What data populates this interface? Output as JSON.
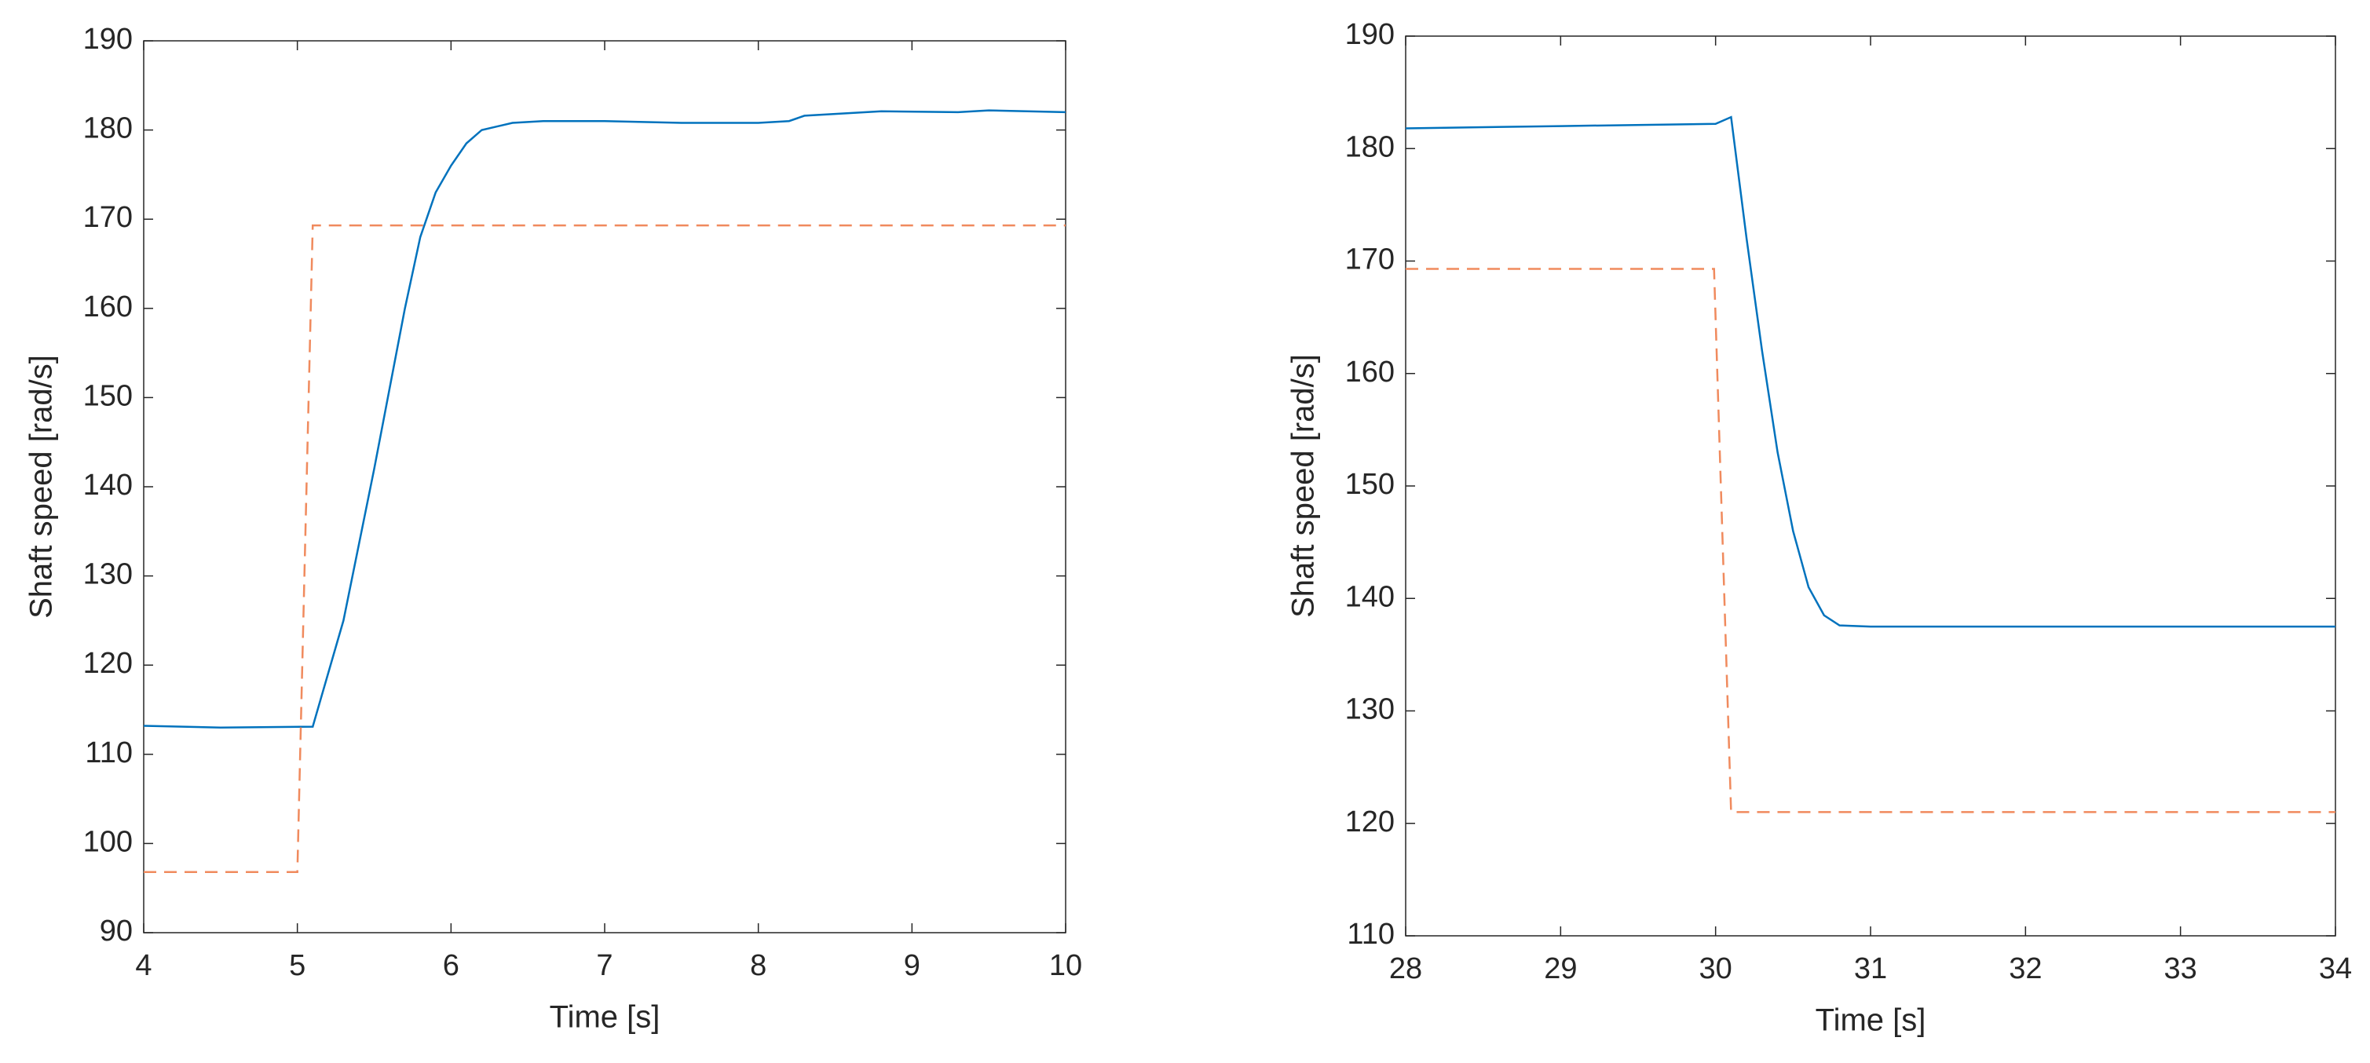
{
  "chart_data": [
    {
      "type": "line",
      "xlabel": "Time [s]",
      "ylabel": "Shaft speed [rad/s]",
      "xlim": [
        4,
        10
      ],
      "ylim": [
        90,
        190
      ],
      "xticks": [
        4,
        5,
        6,
        7,
        8,
        9,
        10
      ],
      "yticks": [
        90,
        100,
        110,
        120,
        130,
        140,
        150,
        160,
        170,
        180,
        190
      ],
      "series": [
        {
          "color": "#0072bd",
          "dashed": false,
          "x": [
            4,
            4.5,
            5.1,
            5.3,
            5.5,
            5.7,
            5.8,
            5.9,
            6.0,
            6.1,
            6.2,
            6.4,
            6.6,
            7,
            7.5,
            8,
            8.2,
            8.3,
            8.8,
            9.3,
            9.5,
            10
          ],
          "values": [
            113.2,
            113,
            113.1,
            125,
            142,
            160,
            168,
            173,
            176,
            178.5,
            180,
            180.8,
            181,
            181,
            180.8,
            180.8,
            181,
            181.6,
            182.1,
            182,
            182.2,
            182
          ]
        },
        {
          "color": "#f08a5d",
          "dashed": true,
          "x": [
            4,
            5,
            5.1,
            10
          ],
          "values": [
            96.8,
            96.8,
            169.3,
            169.3
          ]
        }
      ]
    },
    {
      "type": "line",
      "xlabel": "Time [s]",
      "ylabel": "Shaft speed [rad/s]",
      "xlim": [
        28,
        34
      ],
      "ylim": [
        110,
        190
      ],
      "xticks": [
        28,
        29,
        30,
        31,
        32,
        33,
        34
      ],
      "yticks": [
        110,
        120,
        130,
        140,
        150,
        160,
        170,
        180,
        190
      ],
      "series": [
        {
          "color": "#0072bd",
          "dashed": false,
          "x": [
            28,
            29,
            30,
            30.1,
            30.2,
            30.3,
            30.4,
            30.5,
            30.6,
            30.7,
            30.8,
            31,
            31.6,
            32,
            33,
            34
          ],
          "values": [
            181.8,
            182,
            182.2,
            182.8,
            172,
            162,
            153,
            146,
            141,
            138.5,
            137.6,
            137.5,
            137.5,
            137.5,
            137.5,
            137.5
          ]
        },
        {
          "color": "#f08a5d",
          "dashed": true,
          "x": [
            28,
            29.99,
            30.1,
            34
          ],
          "values": [
            169.3,
            169.3,
            121,
            121
          ]
        }
      ]
    }
  ]
}
